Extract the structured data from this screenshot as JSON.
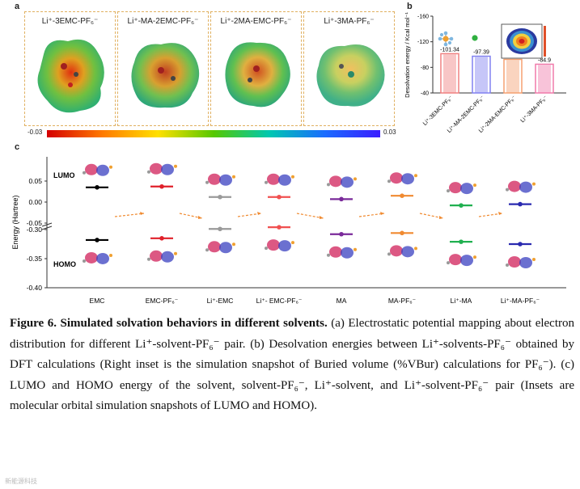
{
  "panel_a": {
    "label": "a",
    "titles": [
      "Li⁺-3EMC-PF₆⁻",
      "Li⁺-MA-2EMC-PF₆⁻",
      "Li⁺-2MA-EMC-PF₆⁻",
      "Li⁺-3MA-PF₆⁻"
    ],
    "scale_min": "-0.03",
    "scale_max": "0.03"
  },
  "panel_b": {
    "label": "b"
  },
  "panel_c": {
    "label": "c"
  },
  "chart_data": [
    {
      "type": "bar",
      "title": "",
      "xlabel": "",
      "ylabel": "Desolvation energy / Kcal mol⁻¹",
      "categories": [
        "Li⁺-3EMC-PF₆⁻",
        "Li⁺-MA-2EMC-PF₆⁻",
        "Li⁺-2MA-EMC-PF₆⁻",
        "Li⁺-3MA-PF₆⁻"
      ],
      "values": [
        -101.34,
        -97.39,
        -92.41,
        -84.9
      ],
      "value_labels": [
        "-101.34",
        "-97.39",
        "-92.41",
        "-84.9"
      ],
      "y_ticks": [
        "-40",
        "-80",
        "-120",
        "-160"
      ],
      "ylim": [
        -160,
        -40
      ],
      "colors": [
        "#f08080",
        "#8080f0",
        "#f5a070",
        "#f07aaa"
      ]
    },
    {
      "type": "scatter",
      "title": "",
      "xlabel": "",
      "ylabel": "Energy (Hartree)",
      "categories": [
        "EMC",
        "EMC-PF₆⁻",
        "Li⁺-EMC",
        "Li⁺- EMC-PF₆⁻",
        "MA",
        "MA-PF₆⁻",
        "Li⁺-MA",
        "Li⁺-MA-PF₆⁻"
      ],
      "y_ticks_top": [
        "0.05",
        "0.00",
        "-0.05"
      ],
      "y_ticks_bottom": [
        "-0.30",
        "-0.35",
        "-0.40"
      ],
      "lumo_label": "LUMO",
      "homo_label": "HOMO",
      "lumo": [
        0.035,
        0.037,
        0.012,
        0.012,
        0.007,
        0.015,
        -0.008,
        -0.005
      ],
      "homo": [
        -0.318,
        -0.315,
        -0.299,
        -0.296,
        -0.308,
        -0.306,
        -0.321,
        -0.325
      ],
      "level_colors": [
        "#000000",
        "#e0202a",
        "#9a9a9a",
        "#f05050",
        "#7a2a9a",
        "#f08a30",
        "#20b050",
        "#2a2ab0"
      ]
    }
  ],
  "caption": {
    "figure_label": "Figure 6. Simulated solvation behaviors in different solvents.",
    "text": "(a) Electrostatic potential mapping about electron distribution for different Li⁺-solvent-PF₆⁻ pair. (b) Desolvation energies between Li⁺-solvents-PF₆⁻ obtained by DFT calculations (Right inset is the simulation snapshot of Buried volume (%VBur) calculations for PF₆⁻). (c) LUMO and HOMO energy of the solvent, solvent-PF₆⁻, Li⁺-solvent, and Li⁺-solvent-PF₆⁻ pair (Insets are molecular orbital simulation snapshots of LUMO and HOMO)."
  },
  "watermark": "新能源科技"
}
